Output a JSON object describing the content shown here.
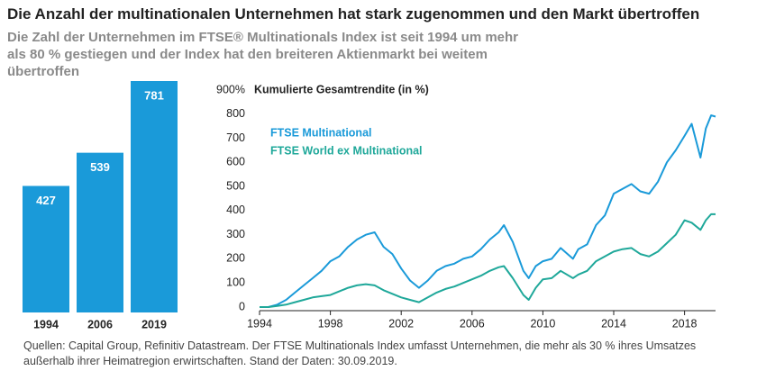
{
  "title": "Die Anzahl der multinationalen Unternehmen hat stark zugenommen und den Markt übertroffen",
  "subtitle": "Die Zahl der Unternehmen im FTSE® Multinationals Index ist seit 1994 um mehr als 80 % gestiegen und der Index hat den breiteren Aktienmarkt bei weitem übertroffen",
  "source": "Quellen: Capital Group, Refinitiv Datastream. Der FTSE Multinationals Index umfasst Unternehmen, die mehr als 30 % ihres Umsatzes außerhalb ihrer Heimatregion erwirtschaften. Stand der Daten: 30.09.2019.",
  "chart_data": [
    {
      "type": "bar",
      "categories": [
        "1994",
        "2006",
        "2019"
      ],
      "values": [
        427,
        539,
        781
      ],
      "color": "#1a9ad9"
    },
    {
      "type": "line",
      "title": "Kumulierte Gesamtrendite (in %)",
      "xlim": [
        1994,
        2019.75
      ],
      "xticks": [
        1994,
        1998,
        2002,
        2006,
        2010,
        2014,
        2018
      ],
      "ylim": [
        0,
        900
      ],
      "yticks": [
        0,
        100,
        200,
        300,
        400,
        500,
        600,
        700,
        {
          "value": 900,
          "label": "900%"
        },
        800
      ],
      "x": [
        1994,
        1994.5,
        1995,
        1995.5,
        1996,
        1996.5,
        1997,
        1997.5,
        1998,
        1998.5,
        1999,
        1999.5,
        2000,
        2000.5,
        2001,
        2001.5,
        2002,
        2002.5,
        2003,
        2003.5,
        2004,
        2004.5,
        2005,
        2005.5,
        2006,
        2006.5,
        2007,
        2007.5,
        2007.8,
        2008.3,
        2008.9,
        2009.2,
        2009.6,
        2010,
        2010.5,
        2011,
        2011.7,
        2012,
        2012.5,
        2013,
        2013.5,
        2014,
        2014.5,
        2015,
        2015.5,
        2016,
        2016.5,
        2017,
        2017.5,
        2018,
        2018.4,
        2018.9,
        2019.2,
        2019.5,
        2019.75
      ],
      "series": [
        {
          "name": "FTSE Multinational",
          "color": "#1a9ad9",
          "values": [
            0,
            0,
            10,
            30,
            60,
            90,
            120,
            150,
            190,
            210,
            250,
            280,
            300,
            310,
            250,
            220,
            160,
            110,
            80,
            110,
            150,
            170,
            180,
            200,
            210,
            240,
            280,
            310,
            340,
            270,
            150,
            120,
            170,
            190,
            200,
            245,
            200,
            240,
            260,
            340,
            380,
            470,
            490,
            510,
            480,
            470,
            520,
            600,
            650,
            710,
            760,
            620,
            740,
            795,
            790
          ]
        },
        {
          "name": "FTSE World ex Multinational",
          "color": "#1fa89a",
          "values": [
            0,
            0,
            5,
            10,
            20,
            30,
            40,
            45,
            50,
            65,
            80,
            90,
            95,
            90,
            70,
            55,
            40,
            30,
            20,
            40,
            60,
            75,
            85,
            100,
            115,
            130,
            150,
            165,
            170,
            120,
            50,
            30,
            80,
            115,
            120,
            150,
            120,
            135,
            150,
            190,
            210,
            230,
            240,
            245,
            220,
            210,
            230,
            265,
            300,
            360,
            350,
            320,
            360,
            385,
            385
          ]
        }
      ]
    }
  ]
}
